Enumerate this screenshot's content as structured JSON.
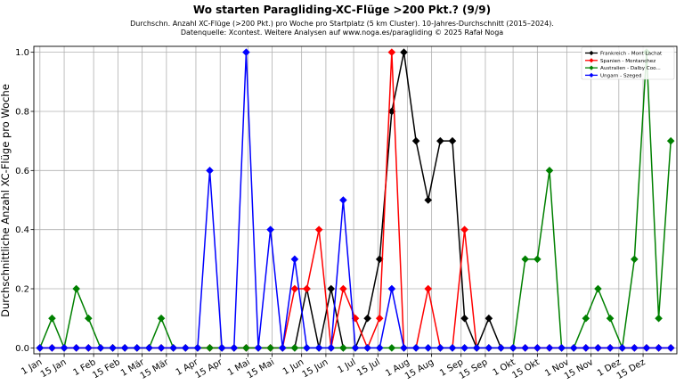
{
  "chart_data": {
    "type": "line",
    "title": "Wo starten Paragliding-XC-Flüge >200 Pkt.? (9/9)",
    "subtitle_lines": [
      "Durchschn. Anzahl XC-Flüge (>200 Pkt.) pro Woche pro Startplatz (5 km Cluster). 10-Jahres-Durchschnitt (2015–2024).",
      "Datenquelle: Xcontest. Weitere Analysen auf www.noga.es/paragliding © 2025 Rafał Noga"
    ],
    "xlabel": "",
    "ylabel": "Durchschnittliche Anzahl XC-Flüge pro Woche",
    "x_ticks": [
      "1 Jan",
      "15 Jan",
      "1 Feb",
      "15 Feb",
      "1 Mär",
      "15 Mär",
      "1 Apr",
      "15 Apr",
      "1 Mai",
      "15 Mai",
      "1 Jun",
      "15 Jun",
      "1 Jul",
      "15 Jul",
      "1 Aug",
      "15 Aug",
      "1 Sep",
      "15 Sep",
      "1 Okt",
      "15 Okt",
      "1 Nov",
      "15 Nov",
      "1 Dez",
      "15 Dez"
    ],
    "x_tick_days": [
      1,
      15,
      32,
      46,
      60,
      74,
      91,
      105,
      121,
      135,
      152,
      166,
      182,
      196,
      213,
      227,
      244,
      258,
      274,
      288,
      305,
      319,
      335,
      349
    ],
    "xlim": [
      -0.5,
      52.5
    ],
    "ylim": [
      -0.02,
      1.02
    ],
    "y_ticks": [
      0.0,
      0.2,
      0.4,
      0.6,
      0.8,
      1.0
    ],
    "grid": true,
    "legend_position": "top-right",
    "x_week_index": [
      0,
      1,
      2,
      3,
      4,
      5,
      6,
      7,
      8,
      9,
      10,
      11,
      12,
      13,
      14,
      15,
      16,
      17,
      18,
      19,
      20,
      21,
      22,
      23,
      24,
      25,
      26,
      27,
      28,
      29,
      30,
      31,
      32,
      33,
      34,
      35,
      36,
      37,
      38,
      39,
      40,
      41,
      42,
      43,
      44,
      45,
      46,
      47,
      48,
      49,
      50,
      51,
      52
    ],
    "series": [
      {
        "name": "Frankreich - Mont Lachat",
        "color": "#000000",
        "values": [
          0,
          0,
          0,
          0,
          0,
          0,
          0,
          0,
          0,
          0,
          0,
          0,
          0,
          0,
          0,
          0,
          0,
          0,
          0,
          0,
          0,
          0,
          0.2,
          0,
          0.2,
          0,
          0,
          0.1,
          0.3,
          0.8,
          1.0,
          0.7,
          0.5,
          0.7,
          0.7,
          0.1,
          0,
          0.1,
          0,
          0,
          0,
          0,
          0,
          0,
          0,
          0,
          0,
          0,
          0,
          0,
          0,
          0,
          0
        ]
      },
      {
        "name": "Spanien - Montanchez",
        "color": "#ff0000",
        "values": [
          0,
          0,
          0,
          0,
          0,
          0,
          0,
          0,
          0,
          0,
          0,
          0,
          0,
          0,
          0,
          0,
          0,
          0,
          0,
          0,
          0,
          0.2,
          0.2,
          0.4,
          0,
          0.2,
          0.1,
          0,
          0.1,
          1.0,
          0,
          0,
          0.2,
          0,
          0,
          0.4,
          0,
          0,
          0,
          0,
          0,
          0,
          0,
          0,
          0,
          0,
          0,
          0,
          0,
          0,
          0,
          0,
          0
        ]
      },
      {
        "name": "Australien - Dalby Coo...",
        "color": "#008000",
        "values": [
          0,
          0.1,
          0,
          0.2,
          0.1,
          0,
          0,
          0,
          0,
          0,
          0.1,
          0,
          0,
          0,
          0,
          0,
          0,
          0,
          0,
          0,
          0,
          0,
          0,
          0,
          0,
          0,
          0,
          0,
          0,
          0,
          0,
          0,
          0,
          0,
          0,
          0,
          0,
          0,
          0,
          0,
          0.3,
          0.3,
          0.6,
          0,
          0,
          0.1,
          0.2,
          0.1,
          0,
          0.3,
          1.0,
          0.1,
          0.7
        ]
      },
      {
        "name": "Ungarn - Szeged",
        "color": "#0000ff",
        "values": [
          0,
          0,
          0,
          0,
          0,
          0,
          0,
          0,
          0,
          0,
          0,
          0,
          0,
          0,
          0.6,
          0,
          0,
          1.0,
          0,
          0.4,
          0,
          0.3,
          0,
          0,
          0,
          0.5,
          0,
          0,
          0,
          0.2,
          0,
          0,
          0,
          0,
          0,
          0,
          0,
          0,
          0,
          0,
          0,
          0,
          0,
          0,
          0,
          0,
          0,
          0,
          0,
          0,
          0,
          0,
          0
        ]
      }
    ]
  }
}
